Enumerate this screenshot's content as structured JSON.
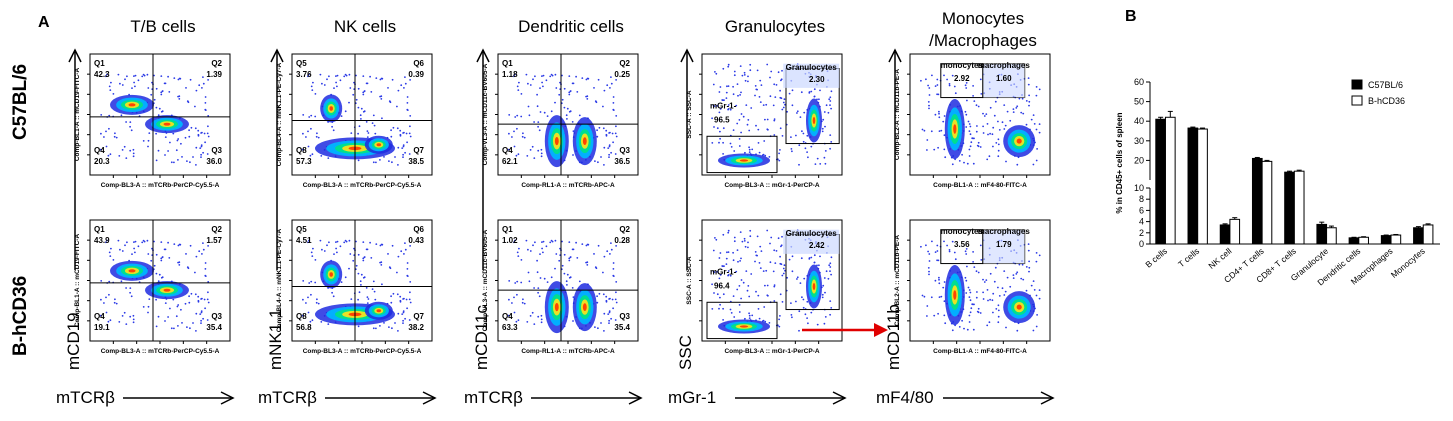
{
  "panel_a": {
    "label": "A",
    "row_labels": [
      "C57BL/6",
      "B-hCD36"
    ],
    "columns": [
      {
        "title": "T/B cells",
        "x_marker": "mTCRβ",
        "y_marker": "mCD19",
        "x_axis": "Comp-BL3-A :: mTCRb-PerCP-Cy5.5-A",
        "y_axis": "Comp-BL1-A :: mCD19-FITC-A",
        "rows": [
          {
            "quadrants": [
              {
                "name": "Q1",
                "value": "42.3"
              },
              {
                "name": "Q2",
                "value": "1.39"
              },
              {
                "name": "Q4",
                "value": "20.3"
              },
              {
                "name": "Q3",
                "value": "36.0"
              }
            ]
          },
          {
            "quadrants": [
              {
                "name": "Q1",
                "value": "43.9"
              },
              {
                "name": "Q2",
                "value": "1.57"
              },
              {
                "name": "Q4",
                "value": "19.1"
              },
              {
                "name": "Q3",
                "value": "35.4"
              }
            ]
          }
        ]
      },
      {
        "title": "NK cells",
        "x_marker": "mTCRβ",
        "y_marker": "mNK1.1",
        "x_axis": "Comp-BL3-A :: mTCRb-PerCP-Cy5.5-A",
        "y_axis": "Comp-BL4-A :: mNK1.1-PE-Cy7-A",
        "rows": [
          {
            "quadrants": [
              {
                "name": "Q5",
                "value": "3.76"
              },
              {
                "name": "Q6",
                "value": "0.39"
              },
              {
                "name": "Q8",
                "value": "57.3"
              },
              {
                "name": "Q7",
                "value": "38.5"
              }
            ]
          },
          {
            "quadrants": [
              {
                "name": "Q5",
                "value": "4.51"
              },
              {
                "name": "Q6",
                "value": "0.43"
              },
              {
                "name": "Q8",
                "value": "56.8"
              },
              {
                "name": "Q7",
                "value": "38.2"
              }
            ]
          }
        ]
      },
      {
        "title": "Dendritic cells",
        "x_marker": "mTCRβ",
        "y_marker": "mCD11c",
        "x_axis": "Comp-RL1-A :: mTCRb-APC-A",
        "y_axis": "Comp-VL3-A :: mCD11c-BV605-A",
        "rows": [
          {
            "quadrants": [
              {
                "name": "Q1",
                "value": "1.18"
              },
              {
                "name": "Q2",
                "value": "0.25"
              },
              {
                "name": "Q4",
                "value": "62.1"
              },
              {
                "name": "Q3",
                "value": "36.5"
              }
            ]
          },
          {
            "quadrants": [
              {
                "name": "Q1",
                "value": "1.02"
              },
              {
                "name": "Q2",
                "value": "0.28"
              },
              {
                "name": "Q4",
                "value": "63.3"
              },
              {
                "name": "Q3",
                "value": "35.4"
              }
            ]
          }
        ]
      },
      {
        "title": "Granulocytes",
        "x_marker": "mGr-1",
        "y_marker": "SSC",
        "x_axis": "Comp-BL3-A :: mGr-1-PerCP-A",
        "y_axis": "SSC-A :: SSC-A",
        "rows": [
          {
            "gates": [
              {
                "name": "Granulocytes",
                "value": "2.30"
              },
              {
                "name": "mGr-1-",
                "value": "96.5"
              }
            ]
          },
          {
            "gates": [
              {
                "name": "Granulocytes",
                "value": "2.42"
              },
              {
                "name": "mGr-1-",
                "value": "96.4"
              }
            ]
          }
        ]
      },
      {
        "title": "Monocytes\n/Macrophages",
        "x_marker": "mF4/80",
        "y_marker": "mCD11b",
        "x_axis": "Comp-BL1-A :: mF4-80-FITC-A",
        "y_axis": "Comp-BL2-A :: mCD11b-PE-A",
        "rows": [
          {
            "gates": [
              {
                "name": "monocytes",
                "value": "2.92"
              },
              {
                "name": "macrophages",
                "value": "1.60"
              }
            ]
          },
          {
            "gates": [
              {
                "name": "monocytes",
                "value": "3.56"
              },
              {
                "name": "macrophages",
                "value": "1.79"
              }
            ]
          }
        ]
      }
    ]
  },
  "chart_data": {
    "type": "bar",
    "panel_label": "B",
    "ylabel": "% in CD45+ cells of spleen",
    "y_axis_break": true,
    "ylim_lower": [
      0,
      10
    ],
    "ylim_upper": [
      10,
      60
    ],
    "yticks": [
      "0",
      "2",
      "4",
      "6",
      "8",
      "10",
      "20",
      "30",
      "40",
      "50",
      "60"
    ],
    "categories": [
      "B cells",
      "T cells",
      "NK cell",
      "CD4+ T cells",
      "CD8+ T cells",
      "Granulocyte",
      "Dendritic cells",
      "Macrophages",
      "Monocytes"
    ],
    "series": [
      {
        "name": "C57BL/6",
        "color": "#000000",
        "values": [
          41,
          36.5,
          3.4,
          21,
          14,
          3.5,
          1.1,
          1.5,
          2.9
        ],
        "errors": [
          1,
          0.5,
          0.2,
          0.5,
          0.5,
          0.4,
          0.1,
          0.1,
          0.2
        ]
      },
      {
        "name": "B-hCD36",
        "color": "#ffffff",
        "values": [
          42,
          36,
          4.4,
          19.5,
          14.5,
          2.9,
          1.2,
          1.6,
          3.4
        ],
        "errors": [
          3,
          0.5,
          0.3,
          0.5,
          0.5,
          0.3,
          0.1,
          0.1,
          0.2
        ]
      }
    ],
    "legend_placement": "top-right"
  }
}
